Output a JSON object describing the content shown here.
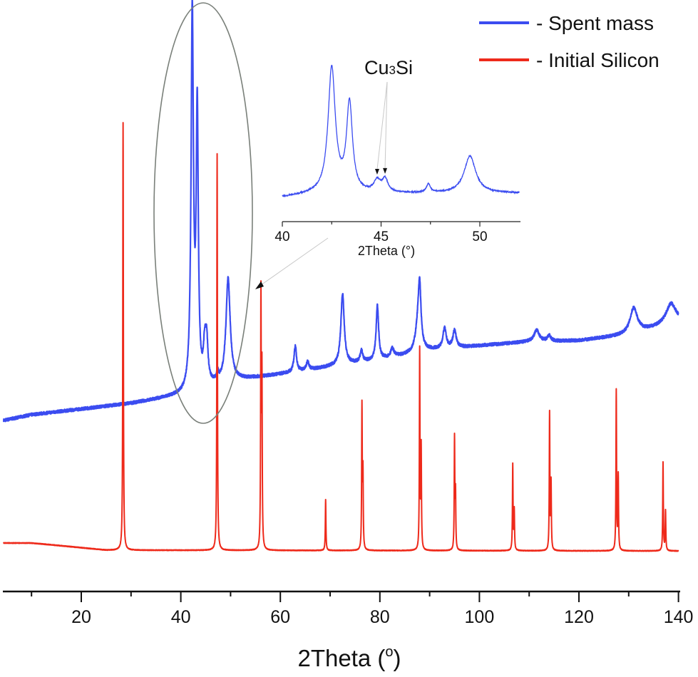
{
  "chart_data": {
    "type": "line",
    "xlabel": "2Theta (°)",
    "xlabel_main": "2Theta (",
    "xlabel_sup": "o",
    "xlabel_close": ")",
    "ylabel": "",
    "xlim": [
      4.4,
      140
    ],
    "ylim": [
      0,
      102
    ],
    "y_unit": "a.u. (no y axis shown)",
    "grid": false,
    "legend_position": "top-right",
    "xticks": [
      20,
      40,
      60,
      80,
      100,
      120,
      140
    ],
    "xtick_labels": [
      "20",
      "40",
      "60",
      "80",
      "100",
      "120",
      "140"
    ],
    "series": [
      {
        "name": "- Spent mass",
        "color": "#3b4cf0",
        "baseline": [
          [
            4.4,
            30
          ],
          [
            10,
            31
          ],
          [
            20,
            32
          ],
          [
            30,
            33
          ],
          [
            40,
            34.4
          ],
          [
            50,
            36.9
          ],
          [
            60,
            38.1
          ],
          [
            70,
            39.4
          ],
          [
            80,
            40.6
          ],
          [
            90,
            42.3
          ],
          [
            100,
            43.1
          ],
          [
            110,
            43.8
          ],
          [
            120,
            44
          ],
          [
            130,
            45
          ],
          [
            140,
            47.3
          ]
        ],
        "peaks": [
          [
            42.3,
            66,
            0.28
          ],
          [
            43.3,
            48,
            0.25
          ],
          [
            44.8,
            6,
            0.3
          ],
          [
            45.2,
            7,
            0.3
          ],
          [
            47.4,
            1.5,
            0.2
          ],
          [
            49.5,
            18,
            0.5
          ],
          [
            63,
            4.5,
            0.3
          ],
          [
            65.5,
            1.5,
            0.3
          ],
          [
            72.5,
            12.5,
            0.4
          ],
          [
            76.3,
            2,
            0.3
          ],
          [
            79.5,
            9.5,
            0.3
          ],
          [
            82.5,
            1.5,
            0.4
          ],
          [
            87.7,
            5,
            0.6
          ],
          [
            88.0,
            9,
            0.3
          ],
          [
            93,
            3.5,
            0.4
          ],
          [
            95,
            3,
            0.4
          ],
          [
            111.5,
            2,
            0.6
          ],
          [
            114,
            1,
            0.4
          ],
          [
            131,
            4.5,
            0.9
          ],
          [
            138.5,
            3.5,
            1.2
          ]
        ]
      },
      {
        "name": "- Initial Silicon",
        "color": "#ee2a1b",
        "baseline": [
          [
            4.4,
            8.5
          ],
          [
            10,
            8.5
          ],
          [
            15,
            8.1
          ],
          [
            25,
            7.25
          ],
          [
            140,
            7.1
          ]
        ],
        "peaks": [
          [
            28.4,
            75,
            0.07
          ],
          [
            47.3,
            69.6,
            0.07
          ],
          [
            56.1,
            44,
            0.07
          ],
          [
            56.3,
            30,
            0.07
          ],
          [
            69.1,
            8.9,
            0.07
          ],
          [
            76.4,
            25,
            0.07
          ],
          [
            76.6,
            13,
            0.07
          ],
          [
            88.0,
            35,
            0.07
          ],
          [
            88.3,
            17.7,
            0.07
          ],
          [
            95.0,
            19.5,
            0.07
          ],
          [
            95.2,
            9.6,
            0.07
          ],
          [
            106.7,
            15,
            0.07
          ],
          [
            107.0,
            7,
            0.07
          ],
          [
            114.1,
            24,
            0.07
          ],
          [
            114.4,
            11.7,
            0.07
          ],
          [
            127.5,
            28,
            0.07
          ],
          [
            127.9,
            13,
            0.07
          ],
          [
            136.9,
            15.5,
            0.07
          ],
          [
            137.4,
            7,
            0.07
          ]
        ]
      }
    ],
    "inset": {
      "type": "line",
      "xlabel": "2Theta (°)",
      "xlim": [
        40,
        52
      ],
      "ylim": [
        0,
        115
      ],
      "xticks": [
        40,
        45,
        50
      ],
      "xtick_labels": [
        "40",
        "45",
        "50"
      ],
      "series": {
        "color": "#3b4cf0",
        "baseline": [
          [
            40,
            17
          ],
          [
            41.5,
            19
          ],
          [
            44,
            19.5
          ],
          [
            52,
            20
          ]
        ],
        "peaks": [
          [
            42.5,
            88,
            0.22
          ],
          [
            43.4,
            62,
            0.18
          ],
          [
            44.8,
            8,
            0.2
          ],
          [
            45.2,
            9,
            0.18
          ],
          [
            47.4,
            6,
            0.12
          ],
          [
            49.5,
            26,
            0.35
          ]
        ]
      },
      "annotation": {
        "label_main": "Cu",
        "label_sub": "3",
        "label_end": "Si",
        "arrow_targets": [
          44.8,
          45.2
        ]
      }
    },
    "highlight_ellipse": {
      "color": "#707a70",
      "x_range": [
        37,
        47.5
      ]
    }
  }
}
